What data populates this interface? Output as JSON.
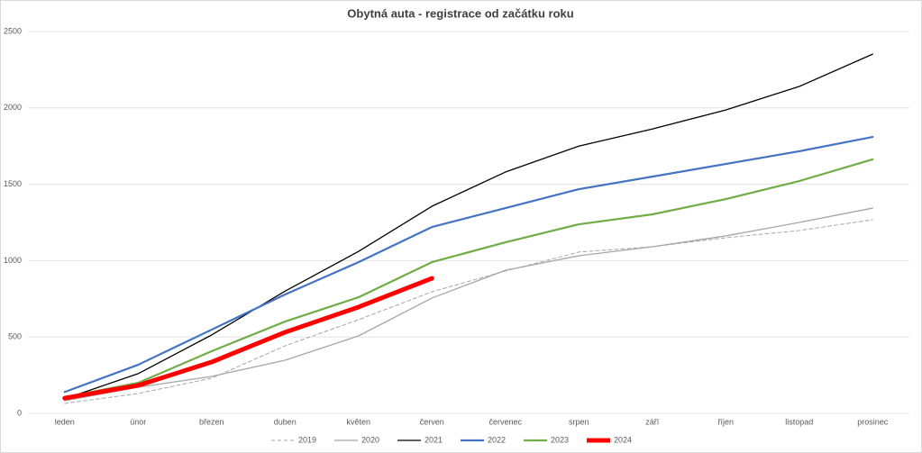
{
  "chart_data": {
    "type": "line",
    "title": "Obytná auta - registrace od začátku roku",
    "categories": [
      "leden",
      "únor",
      "březen",
      "duben",
      "květen",
      "červen",
      "červenec",
      "srpen",
      "září",
      "říjen",
      "listopad",
      "prosinec"
    ],
    "series": [
      {
        "name": "2019",
        "color": "#a6a6a6",
        "dashed": true,
        "width": 1,
        "values": [
          65,
          130,
          230,
          442,
          613,
          796,
          932,
          1056,
          1091,
          1150,
          1197,
          1268
        ]
      },
      {
        "name": "2020",
        "color": "#a6a6a6",
        "dashed": false,
        "width": 1.3,
        "values": [
          83,
          171,
          242,
          348,
          507,
          755,
          937,
          1032,
          1091,
          1162,
          1250,
          1344
        ]
      },
      {
        "name": "2021",
        "color": "#000000",
        "dashed": false,
        "width": 1.3,
        "values": [
          95,
          260,
          513,
          800,
          1060,
          1356,
          1580,
          1750,
          1862,
          1986,
          2140,
          2352
        ]
      },
      {
        "name": "2022",
        "color": "#4472c4",
        "dashed": false,
        "width": 2.2,
        "values": [
          140,
          318,
          548,
          778,
          990,
          1220,
          1344,
          1468,
          1550,
          1633,
          1716,
          1810
        ]
      },
      {
        "name": "2023",
        "color": "#70ad47",
        "dashed": false,
        "width": 2.2,
        "values": [
          106,
          200,
          407,
          601,
          760,
          990,
          1120,
          1238,
          1303,
          1403,
          1521,
          1663
        ]
      },
      {
        "name": "2024",
        "color": "#ff0000",
        "dashed": false,
        "width": 5,
        "values": [
          100,
          183,
          336,
          531,
          696,
          884,
          null,
          null,
          null,
          null,
          null,
          null
        ]
      }
    ],
    "ylim": [
      0,
      2500
    ],
    "yticks": [
      0,
      500,
      1000,
      1500,
      2000,
      2500
    ],
    "grid": true,
    "legend": "bottom"
  }
}
